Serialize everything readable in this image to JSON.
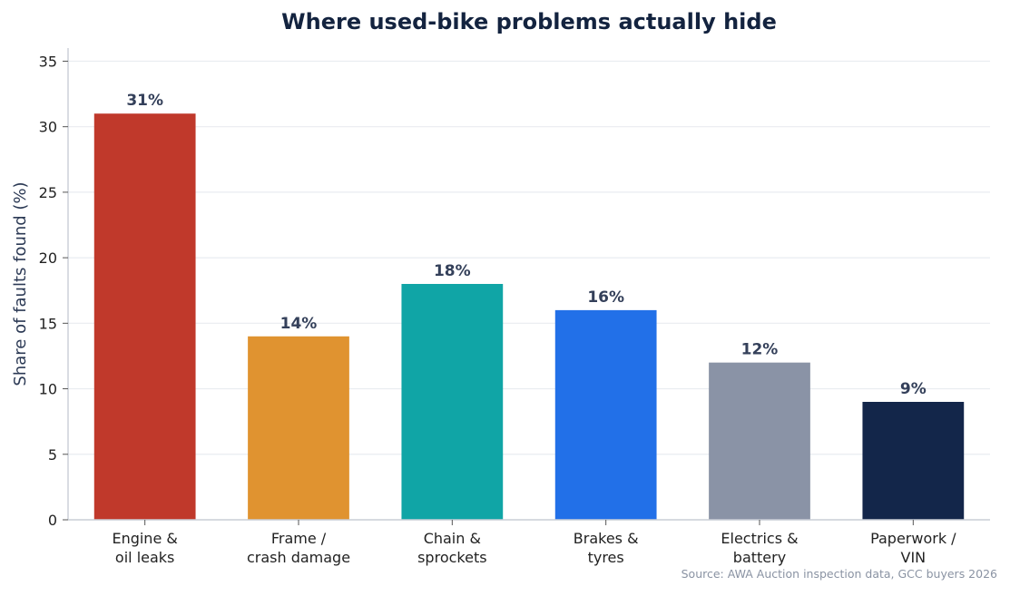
{
  "chart_data": {
    "type": "bar",
    "title": "Where used-bike problems actually hide",
    "xlabel": "",
    "ylabel": "Share of faults found (%)",
    "ylim": [
      0,
      36
    ],
    "yticks": [
      0,
      5,
      10,
      15,
      20,
      25,
      30,
      35
    ],
    "grid": true,
    "categories": [
      [
        "Engine &",
        "oil leaks"
      ],
      [
        "Frame /",
        "crash damage"
      ],
      [
        "Chain &",
        "sprockets"
      ],
      [
        "Brakes &",
        "tyres"
      ],
      [
        "Electrics &",
        "battery"
      ],
      [
        "Paperwork /",
        "VIN"
      ]
    ],
    "values": [
      31,
      14,
      18,
      16,
      12,
      9
    ],
    "data_labels": [
      "31%",
      "14%",
      "18%",
      "16%",
      "12%",
      "9%"
    ],
    "colors": [
      "#c0392b",
      "#e09330",
      "#10a5a6",
      "#2270e8",
      "#8a93a6",
      "#13264a"
    ],
    "source": "Source: AWA Auction inspection data, GCC buyers 2026"
  }
}
